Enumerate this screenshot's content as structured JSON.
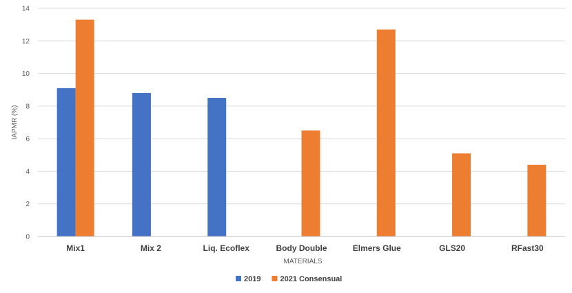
{
  "chart_data": {
    "type": "bar",
    "categories": [
      "Mix1",
      "Mix 2",
      "Liq. Ecoflex",
      "Body Double",
      "Elmers Glue",
      "GLS20",
      "RFast30"
    ],
    "series": [
      {
        "name": "2019",
        "color": "#4472C4",
        "values": [
          9.1,
          8.8,
          8.5,
          null,
          null,
          null,
          null
        ]
      },
      {
        "name": "2021 Consensual",
        "color": "#ED7D31",
        "values": [
          13.3,
          null,
          null,
          6.5,
          12.7,
          5.1,
          4.4
        ]
      }
    ],
    "xlabel": "MATERIALS",
    "ylabel": "IAPMR (%)",
    "ylim": [
      0,
      14
    ],
    "yticks": [
      0,
      2,
      4,
      6,
      8,
      10,
      12,
      14
    ],
    "grid": true,
    "legend_position": "bottom"
  }
}
